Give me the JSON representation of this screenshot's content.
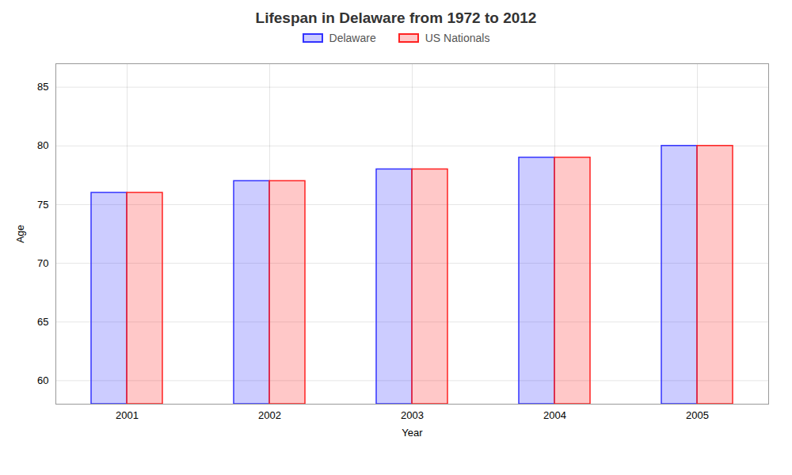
{
  "chart_data": {
    "type": "bar",
    "title": "Lifespan in Delaware from 1972 to 2012",
    "xlabel": "Year",
    "ylabel": "Age",
    "categories": [
      "2001",
      "2002",
      "2003",
      "2004",
      "2005"
    ],
    "series": [
      {
        "name": "Delaware",
        "color": "#3333ff",
        "values": [
          76,
          77,
          78,
          79,
          80
        ]
      },
      {
        "name": "US Nationals",
        "color": "#ff2222",
        "values": [
          76,
          77,
          78,
          79,
          80
        ]
      }
    ],
    "ylim": [
      58,
      87
    ],
    "yticks": [
      60,
      65,
      70,
      75,
      80,
      85
    ],
    "grid": true,
    "legend": "top"
  }
}
